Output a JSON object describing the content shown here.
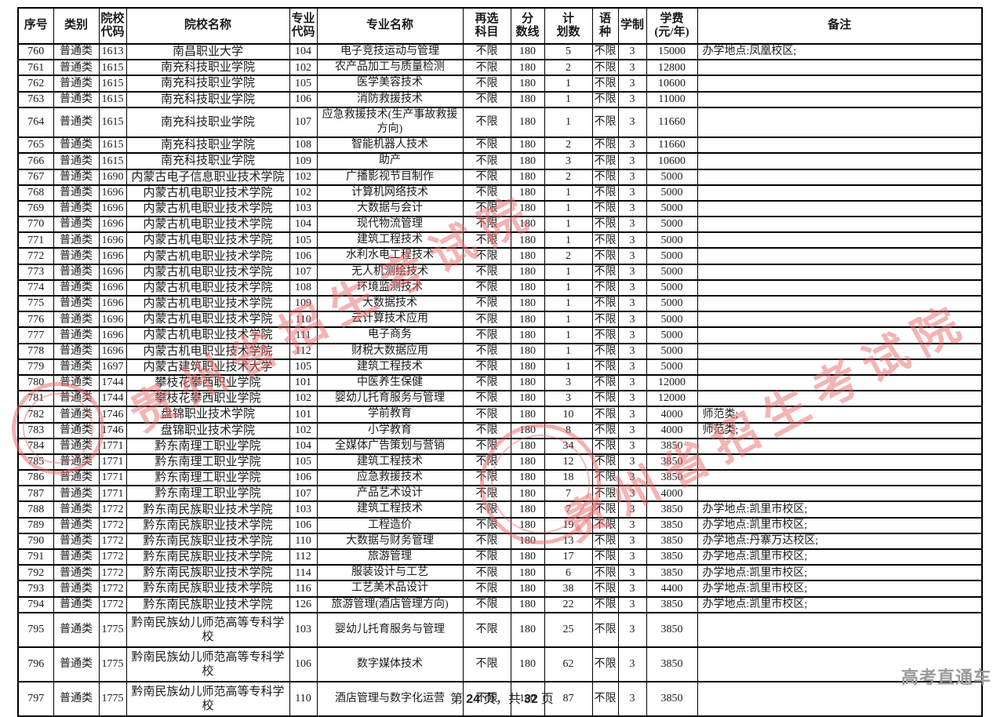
{
  "watermark": {
    "diagonal_text": "贵州省招生考试院",
    "brand_text": "高考直通车",
    "red": "#e76969",
    "gray": "#9b9b9b"
  },
  "footer": {
    "prefix": "第",
    "page_number": "24",
    "middle": "页，共",
    "total_pages": "32",
    "suffix": "页"
  },
  "table": {
    "columns": [
      {
        "key": "seq",
        "label": "序号"
      },
      {
        "key": "category",
        "label": "类别"
      },
      {
        "key": "school_code",
        "label": "院校\n代码"
      },
      {
        "key": "school_name",
        "label": "院校名称"
      },
      {
        "key": "major_code",
        "label": "专业\n代码"
      },
      {
        "key": "major_name",
        "label": "专业名称"
      },
      {
        "key": "subject_requirement",
        "label": "再选\n科目"
      },
      {
        "key": "score_line",
        "label": "分\n数线"
      },
      {
        "key": "plan_count",
        "label": "计\n划数"
      },
      {
        "key": "language",
        "label": "语种"
      },
      {
        "key": "duration",
        "label": "学制"
      },
      {
        "key": "tuition",
        "label": "学费\n(元/年)"
      },
      {
        "key": "remark",
        "label": "备注"
      }
    ],
    "rows": [
      [
        "760",
        "普通类",
        "1613",
        "南昌职业大学",
        "104",
        "电子竞技运动与管理",
        "不限",
        "180",
        "5",
        "不限",
        "3",
        "15000",
        "办学地点:凤凰校区;"
      ],
      [
        "761",
        "普通类",
        "1615",
        "南充科技职业学院",
        "102",
        "农产品加工与质量检测",
        "不限",
        "180",
        "2",
        "不限",
        "3",
        "12800",
        ""
      ],
      [
        "762",
        "普通类",
        "1615",
        "南充科技职业学院",
        "105",
        "医学美容技术",
        "不限",
        "180",
        "1",
        "不限",
        "3",
        "10600",
        ""
      ],
      [
        "763",
        "普通类",
        "1615",
        "南充科技职业学院",
        "106",
        "消防救援技术",
        "不限",
        "180",
        "1",
        "不限",
        "3",
        "11000",
        ""
      ],
      [
        "764",
        "普通类",
        "1615",
        "南充科技职业学院",
        "107",
        "应急救援技术(生产事故救援方向)",
        "不限",
        "180",
        "1",
        "不限",
        "3",
        "11660",
        ""
      ],
      [
        "765",
        "普通类",
        "1615",
        "南充科技职业学院",
        "108",
        "智能机器人技术",
        "不限",
        "180",
        "2",
        "不限",
        "3",
        "11660",
        ""
      ],
      [
        "766",
        "普通类",
        "1615",
        "南充科技职业学院",
        "109",
        "助产",
        "不限",
        "180",
        "3",
        "不限",
        "3",
        "10600",
        ""
      ],
      [
        "767",
        "普通类",
        "1690",
        "内蒙古电子信息职业技术学院",
        "102",
        "广播影视节目制作",
        "不限",
        "180",
        "2",
        "不限",
        "3",
        "5000",
        ""
      ],
      [
        "768",
        "普通类",
        "1696",
        "内蒙古机电职业技术学院",
        "102",
        "计算机网络技术",
        "不限",
        "180",
        "1",
        "不限",
        "3",
        "5000",
        ""
      ],
      [
        "769",
        "普通类",
        "1696",
        "内蒙古机电职业技术学院",
        "103",
        "大数据与会计",
        "不限",
        "180",
        "1",
        "不限",
        "3",
        "5000",
        ""
      ],
      [
        "770",
        "普通类",
        "1696",
        "内蒙古机电职业技术学院",
        "104",
        "现代物流管理",
        "不限",
        "180",
        "1",
        "不限",
        "3",
        "5000",
        ""
      ],
      [
        "771",
        "普通类",
        "1696",
        "内蒙古机电职业技术学院",
        "105",
        "建筑工程技术",
        "不限",
        "180",
        "1",
        "不限",
        "3",
        "5000",
        ""
      ],
      [
        "772",
        "普通类",
        "1696",
        "内蒙古机电职业技术学院",
        "106",
        "水利水电工程技术",
        "不限",
        "180",
        "2",
        "不限",
        "3",
        "5000",
        ""
      ],
      [
        "773",
        "普通类",
        "1696",
        "内蒙古机电职业技术学院",
        "107",
        "无人机测绘技术",
        "不限",
        "180",
        "1",
        "不限",
        "3",
        "5000",
        ""
      ],
      [
        "774",
        "普通类",
        "1696",
        "内蒙古机电职业技术学院",
        "108",
        "环境监测技术",
        "不限",
        "180",
        "1",
        "不限",
        "3",
        "5000",
        ""
      ],
      [
        "775",
        "普通类",
        "1696",
        "内蒙古机电职业技术学院",
        "109",
        "大数据技术",
        "不限",
        "180",
        "1",
        "不限",
        "3",
        "5000",
        ""
      ],
      [
        "776",
        "普通类",
        "1696",
        "内蒙古机电职业技术学院",
        "110",
        "云计算技术应用",
        "不限",
        "180",
        "1",
        "不限",
        "3",
        "5000",
        ""
      ],
      [
        "777",
        "普通类",
        "1696",
        "内蒙古机电职业技术学院",
        "111",
        "电子商务",
        "不限",
        "180",
        "1",
        "不限",
        "3",
        "5000",
        ""
      ],
      [
        "778",
        "普通类",
        "1696",
        "内蒙古机电职业技术学院",
        "112",
        "财税大数据应用",
        "不限",
        "180",
        "1",
        "不限",
        "3",
        "5000",
        ""
      ],
      [
        "779",
        "普通类",
        "1697",
        "内蒙古建筑职业技术大学",
        "105",
        "建筑工程技术",
        "不限",
        "180",
        "1",
        "不限",
        "3",
        "5000",
        ""
      ],
      [
        "780",
        "普通类",
        "1744",
        "攀枝花攀西职业学院",
        "101",
        "中医养生保健",
        "不限",
        "180",
        "3",
        "不限",
        "3",
        "12000",
        ""
      ],
      [
        "781",
        "普通类",
        "1744",
        "攀枝花攀西职业学院",
        "102",
        "婴幼儿托育服务与管理",
        "不限",
        "180",
        "3",
        "不限",
        "3",
        "12000",
        ""
      ],
      [
        "782",
        "普通类",
        "1746",
        "盘锦职业技术学院",
        "101",
        "学前教育",
        "不限",
        "180",
        "10",
        "不限",
        "3",
        "4000",
        "师范类;"
      ],
      [
        "783",
        "普通类",
        "1746",
        "盘锦职业技术学院",
        "102",
        "小学教育",
        "不限",
        "180",
        "8",
        "不限",
        "3",
        "4000",
        "师范类;"
      ],
      [
        "784",
        "普通类",
        "1771",
        "黔东南理工职业学院",
        "104",
        "全媒体广告策划与营销",
        "不限",
        "180",
        "34",
        "不限",
        "3",
        "3850",
        ""
      ],
      [
        "785",
        "普通类",
        "1771",
        "黔东南理工职业学院",
        "105",
        "建筑工程技术",
        "不限",
        "180",
        "12",
        "不限",
        "3",
        "3850",
        ""
      ],
      [
        "786",
        "普通类",
        "1771",
        "黔东南理工职业学院",
        "106",
        "应急救援技术",
        "不限",
        "180",
        "18",
        "不限",
        "3",
        "3850",
        ""
      ],
      [
        "787",
        "普通类",
        "1771",
        "黔东南理工职业学院",
        "107",
        "产品艺术设计",
        "不限",
        "180",
        "7",
        "不限",
        "3",
        "4000",
        ""
      ],
      [
        "788",
        "普通类",
        "1772",
        "黔东南民族职业技术学院",
        "103",
        "建筑工程技术",
        "不限",
        "180",
        "7",
        "不限",
        "3",
        "3850",
        "办学地点:凯里市校区;"
      ],
      [
        "789",
        "普通类",
        "1772",
        "黔东南民族职业技术学院",
        "106",
        "工程造价",
        "不限",
        "180",
        "19",
        "不限",
        "3",
        "3850",
        "办学地点:凯里市校区;"
      ],
      [
        "790",
        "普通类",
        "1772",
        "黔东南民族职业技术学院",
        "110",
        "大数据与财务管理",
        "不限",
        "180",
        "13",
        "不限",
        "3",
        "3850",
        "办学地点:丹寨万达校区;"
      ],
      [
        "791",
        "普通类",
        "1772",
        "黔东南民族职业技术学院",
        "112",
        "旅游管理",
        "不限",
        "180",
        "17",
        "不限",
        "3",
        "3850",
        "办学地点:凯里市校区;"
      ],
      [
        "792",
        "普通类",
        "1772",
        "黔东南民族职业技术学院",
        "114",
        "服装设计与工艺",
        "不限",
        "180",
        "6",
        "不限",
        "3",
        "3850",
        "办学地点:凯里市校区;"
      ],
      [
        "793",
        "普通类",
        "1772",
        "黔东南民族职业技术学院",
        "116",
        "工艺美术品设计",
        "不限",
        "180",
        "38",
        "不限",
        "3",
        "4400",
        "办学地点:凯里市校区;"
      ],
      [
        "794",
        "普通类",
        "1772",
        "黔东南民族职业技术学院",
        "126",
        "旅游管理(酒店管理方向)",
        "不限",
        "180",
        "22",
        "不限",
        "3",
        "3850",
        "办学地点:凯里市校区;"
      ],
      [
        "795",
        "普通类",
        "1775",
        "黔南民族幼儿师范高等专科学校",
        "103",
        "婴幼儿托育服务与管理",
        "不限",
        "180",
        "25",
        "不限",
        "3",
        "3850",
        ""
      ],
      [
        "796",
        "普通类",
        "1775",
        "黔南民族幼儿师范高等专科学校",
        "106",
        "数字媒体技术",
        "不限",
        "180",
        "62",
        "不限",
        "3",
        "3850",
        ""
      ],
      [
        "797",
        "普通类",
        "1775",
        "黔南民族幼儿师范高等专科学校",
        "110",
        "酒店管理与数字化运营",
        "不限",
        "180",
        "87",
        "不限",
        "3",
        "3850",
        ""
      ]
    ],
    "tall_rows": {
      "764": 38,
      "795": 44,
      "796": 44,
      "797": 44
    }
  }
}
